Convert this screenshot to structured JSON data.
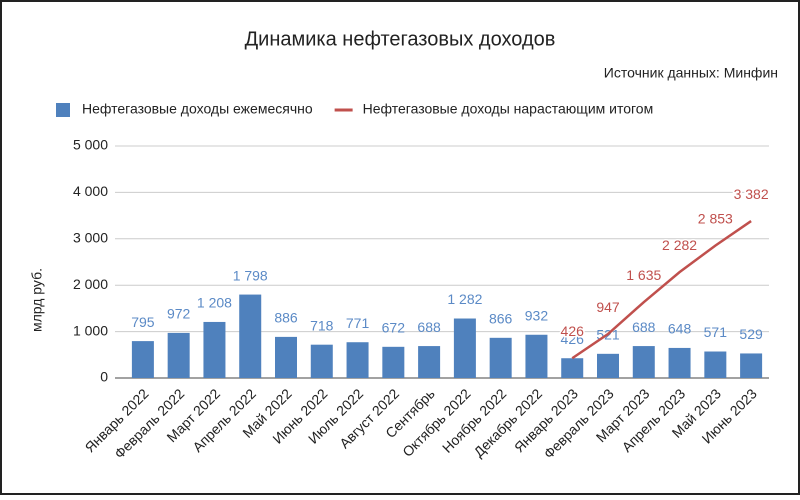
{
  "chart_data": {
    "type": "combo",
    "title": "Динамика нефтегазовых доходов",
    "source": "Источник данных: Минфин",
    "y_label": "млрд руб.",
    "categories": [
      "Январь 2022",
      "Февраль 2022",
      "Март 2022",
      "Апрель 2022",
      "Май 2022",
      "Июнь 2022",
      "Июль 2022",
      "Август 2022",
      "Сентябрь",
      "Октябрь 2022",
      "Ноябрь 2022",
      "Декабрь 2022",
      "Январь 2023",
      "Февраль 2023",
      "Март 2023",
      "Апрель 2023",
      "Май 2023",
      "Июнь 2023"
    ],
    "series": [
      {
        "name": "Нефтегазовые доходы ежемесячно",
        "type": "bar",
        "color": "#4f81bd",
        "label_color": "#5b8ac6",
        "values": [
          795,
          972,
          1208,
          1798,
          886,
          718,
          771,
          672,
          688,
          1282,
          866,
          932,
          426,
          521,
          688,
          648,
          571,
          529
        ],
        "value_labels": [
          "795",
          "972",
          "1 208",
          "1 798",
          "886",
          "718",
          "771",
          "672",
          "688",
          "1 282",
          "866",
          "932",
          "426",
          "521",
          "688",
          "648",
          "571",
          "529"
        ]
      },
      {
        "name": "Нефтегазовые доходы нарастающим итогом",
        "type": "line",
        "color": "#c0504d",
        "label_color": "#c0504d",
        "values": [
          null,
          null,
          null,
          null,
          null,
          null,
          null,
          null,
          null,
          null,
          null,
          null,
          426,
          947,
          1635,
          2282,
          2853,
          3382
        ],
        "value_labels": [
          null,
          null,
          null,
          null,
          null,
          null,
          null,
          null,
          null,
          null,
          null,
          null,
          "426",
          "947",
          "1 635",
          "2 282",
          "2 853",
          "3 382"
        ]
      }
    ],
    "ylim": [
      0,
      5000
    ],
    "yticks": [
      0,
      {
        "value": 1000,
        "label": "1 000"
      },
      {
        "value": 2000,
        "label": "2 000"
      },
      {
        "value": 3000,
        "label": "3 000"
      },
      {
        "value": 4000,
        "label": "4 000"
      },
      {
        "value": 5000,
        "label": "5 000"
      }
    ],
    "grid": true,
    "legend": "top"
  }
}
